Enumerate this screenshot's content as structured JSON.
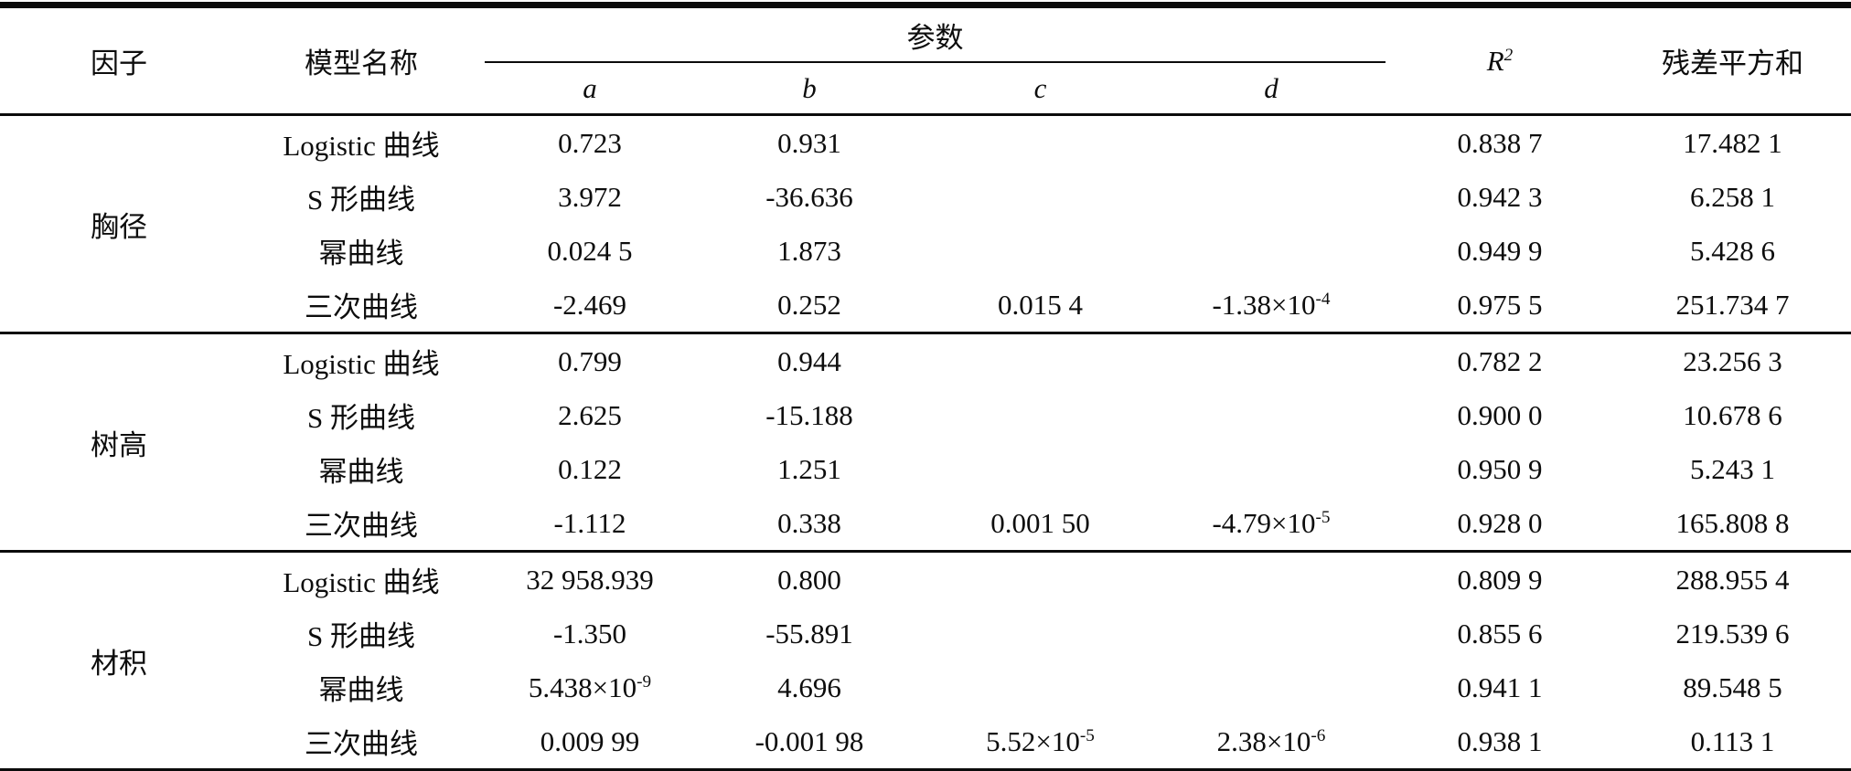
{
  "table": {
    "columns": {
      "factor": "因子",
      "model": "模型名称",
      "params": "参数",
      "param_names": [
        "a",
        "b",
        "c",
        "d"
      ],
      "r2": "R^2",
      "rss": "残差平方和"
    },
    "groups": [
      {
        "factor": "胸径",
        "rows": [
          {
            "model": "Logistic 曲线",
            "a": "0.723",
            "b": "0.931",
            "c": "",
            "d": "",
            "r2": "0.838 7",
            "rss": "17.482 1"
          },
          {
            "model": "S 形曲线",
            "a": "3.972",
            "b": "-36.636",
            "c": "",
            "d": "",
            "r2": "0.942 3",
            "rss": "6.258 1"
          },
          {
            "model": "幂曲线",
            "a": "0.024 5",
            "b": "1.873",
            "c": "",
            "d": "",
            "r2": "0.949 9",
            "rss": "5.428 6"
          },
          {
            "model": "三次曲线",
            "a": "-2.469",
            "b": "0.252",
            "c": "0.015 4",
            "d": "-1.38×10^-4",
            "r2": "0.975 5",
            "rss": "251.734 7"
          }
        ]
      },
      {
        "factor": "树高",
        "rows": [
          {
            "model": "Logistic 曲线",
            "a": "0.799",
            "b": "0.944",
            "c": "",
            "d": "",
            "r2": "0.782 2",
            "rss": "23.256 3"
          },
          {
            "model": "S 形曲线",
            "a": "2.625",
            "b": "-15.188",
            "c": "",
            "d": "",
            "r2": "0.900 0",
            "rss": "10.678 6"
          },
          {
            "model": "幂曲线",
            "a": "0.122",
            "b": "1.251",
            "c": "",
            "d": "",
            "r2": "0.950 9",
            "rss": "5.243 1"
          },
          {
            "model": "三次曲线",
            "a": "-1.112",
            "b": "0.338",
            "c": "0.001 50",
            "d": "-4.79×10^-5",
            "r2": "0.928 0",
            "rss": "165.808 8"
          }
        ]
      },
      {
        "factor": "材积",
        "rows": [
          {
            "model": "Logistic 曲线",
            "a": "32 958.939",
            "b": "0.800",
            "c": "",
            "d": "",
            "r2": "0.809 9",
            "rss": "288.955 4"
          },
          {
            "model": "S 形曲线",
            "a": "-1.350",
            "b": "-55.891",
            "c": "",
            "d": "",
            "r2": "0.855 6",
            "rss": "219.539 6"
          },
          {
            "model": "幂曲线",
            "a": "5.438×10^-9",
            "b": "4.696",
            "c": "",
            "d": "",
            "r2": "0.941 1",
            "rss": "89.548 5"
          },
          {
            "model": "三次曲线",
            "a": "0.009 99",
            "b": "-0.001 98",
            "c": "5.52×10^-5",
            "d": "2.38×10^-6",
            "r2": "0.938 1",
            "rss": "0.113 1"
          }
        ]
      }
    ]
  }
}
